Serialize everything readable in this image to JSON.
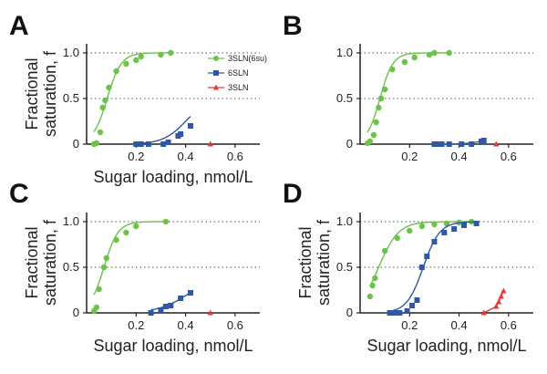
{
  "chart_data": [
    {
      "type": "scatter",
      "panel_label": "A",
      "xlabel": "Sugar loading, nmol/L",
      "ylabel": [
        "Fractional",
        "saturation, f"
      ],
      "xlim": [
        0,
        0.7
      ],
      "ylim": [
        0,
        1.1
      ],
      "x_ticks": [
        0.2,
        0.4,
        0.6
      ],
      "x_tick_labels": [
        "0.2",
        "0.4",
        "0.6"
      ],
      "y_ticks": [
        0,
        0.5,
        1.0
      ],
      "y_tick_labels": [
        "0",
        "0.5",
        "1.0"
      ],
      "gridlines_y": [
        0.5,
        1.0
      ],
      "legend": {
        "position": "upper-right",
        "entries": [
          "3SLN(6su)",
          "6SLN",
          "3SLN"
        ]
      },
      "series": [
        {
          "name": "3SLN(6su)",
          "color": "#6cc24a",
          "marker": "circle",
          "x": [
            0.03,
            0.04,
            0.055,
            0.065,
            0.075,
            0.09,
            0.12,
            0.16,
            0.2,
            0.22,
            0.3,
            0.34
          ],
          "y": [
            0.0,
            0.01,
            0.13,
            0.4,
            0.48,
            0.62,
            0.8,
            0.88,
            0.92,
            0.96,
            0.98,
            1.0
          ],
          "fit": {
            "x0": 0.083,
            "k": 35
          }
        },
        {
          "name": "6SLN",
          "color": "#2e58a6",
          "marker": "square",
          "x": [
            0.2,
            0.22,
            0.25,
            0.31,
            0.33,
            0.37,
            0.38,
            0.42
          ],
          "y": [
            0.0,
            0.0,
            0.0,
            0.0,
            0.02,
            0.09,
            0.11,
            0.2
          ],
          "fit": {
            "x0": 0.4,
            "k": 22,
            "ymax": 0.5
          }
        },
        {
          "name": "3SLN",
          "color": "#e23a3a",
          "marker": "triangle",
          "x": [
            0.5
          ],
          "y": [
            0.0
          ]
        }
      ]
    },
    {
      "type": "scatter",
      "panel_label": "B",
      "xlabel": "",
      "ylabel": [],
      "xlim": [
        0,
        0.7
      ],
      "ylim": [
        0,
        1.1
      ],
      "x_ticks": [
        0.2,
        0.4,
        0.6
      ],
      "x_tick_labels": [
        "0.2",
        "0.4",
        "0.6"
      ],
      "y_ticks": [
        0,
        0.5,
        1.0
      ],
      "y_tick_labels": [
        "0",
        "0.5",
        "1.0"
      ],
      "gridlines_y": [
        0.5,
        1.0
      ],
      "series": [
        {
          "name": "3SLN(6su)",
          "color": "#6cc24a",
          "marker": "circle",
          "x": [
            0.03,
            0.04,
            0.055,
            0.065,
            0.075,
            0.085,
            0.1,
            0.13,
            0.18,
            0.22,
            0.28,
            0.3,
            0.36
          ],
          "y": [
            0.01,
            0.03,
            0.1,
            0.24,
            0.4,
            0.5,
            0.6,
            0.82,
            0.9,
            0.95,
            0.98,
            1.0,
            1.0
          ],
          "fit": {
            "x0": 0.08,
            "k": 38
          }
        },
        {
          "name": "6SLN",
          "color": "#2e58a6",
          "marker": "square",
          "x": [
            0.3,
            0.31,
            0.33,
            0.36,
            0.41,
            0.45,
            0.49,
            0.5
          ],
          "y": [
            0.0,
            0.0,
            0.0,
            0.0,
            0.0,
            0.0,
            0.03,
            0.04
          ],
          "fit": {
            "x0": 0.6,
            "k": 25,
            "ymax": 0.6
          }
        },
        {
          "name": "3SLN",
          "color": "#e23a3a",
          "marker": "triangle",
          "x": [
            0.55
          ],
          "y": [
            0.0
          ]
        }
      ]
    },
    {
      "type": "scatter",
      "panel_label": "C",
      "xlabel": "Sugar loading, nmol/L",
      "ylabel": [
        "Fractional",
        "saturation, f"
      ],
      "xlim": [
        0,
        0.7
      ],
      "ylim": [
        0,
        1.1
      ],
      "x_ticks": [
        0.2,
        0.4,
        0.6
      ],
      "x_tick_labels": [
        "0.2",
        "0.4",
        "0.6"
      ],
      "y_ticks": [
        0,
        0.5,
        1.0
      ],
      "y_tick_labels": [
        "0",
        "0.5",
        "1.0"
      ],
      "gridlines_y": [
        0.5,
        1.0
      ],
      "series": [
        {
          "name": "3SLN(6su)",
          "color": "#6cc24a",
          "marker": "circle",
          "x": [
            0.03,
            0.04,
            0.05,
            0.07,
            0.08,
            0.12,
            0.16,
            0.2,
            0.32
          ],
          "y": [
            0.02,
            0.06,
            0.26,
            0.5,
            0.6,
            0.8,
            0.88,
            0.95,
            1.0
          ],
          "fit": {
            "x0": 0.07,
            "k": 35
          }
        },
        {
          "name": "6SLN",
          "color": "#2e58a6",
          "marker": "square",
          "x": [
            0.26,
            0.3,
            0.32,
            0.34,
            0.38,
            0.42
          ],
          "y": [
            0.0,
            0.03,
            0.07,
            0.08,
            0.16,
            0.22
          ],
          "fit": {
            "x0": 0.42,
            "k": 16,
            "ymax": 0.45
          }
        },
        {
          "name": "3SLN",
          "color": "#e23a3a",
          "marker": "triangle",
          "x": [
            0.5
          ],
          "y": [
            0.0
          ]
        }
      ]
    },
    {
      "type": "scatter",
      "panel_label": "D",
      "xlabel": "Sugar loading, nmol/L",
      "ylabel": [
        "Fractional",
        "saturation, f"
      ],
      "xlim": [
        0,
        0.7
      ],
      "ylim": [
        0,
        1.1
      ],
      "x_ticks": [
        0.2,
        0.4,
        0.6
      ],
      "x_tick_labels": [
        "0.2",
        "0.4",
        "0.6"
      ],
      "y_ticks": [
        0,
        0.5,
        1.0
      ],
      "y_tick_labels": [
        "0",
        "0.5",
        "1.0"
      ],
      "gridlines_y": [
        0.5,
        1.0
      ],
      "series": [
        {
          "name": "3SLN(6su)",
          "color": "#6cc24a",
          "marker": "circle",
          "x": [
            0.04,
            0.05,
            0.06,
            0.1,
            0.15,
            0.2,
            0.25,
            0.3,
            0.35,
            0.4,
            0.45
          ],
          "y": [
            0.18,
            0.3,
            0.38,
            0.68,
            0.82,
            0.9,
            0.95,
            0.97,
            0.98,
            0.99,
            1.0
          ],
          "fit": {
            "x0": 0.075,
            "k": 25
          }
        },
        {
          "name": "6SLN",
          "color": "#2e58a6",
          "marker": "square",
          "x": [
            0.12,
            0.14,
            0.16,
            0.19,
            0.21,
            0.23,
            0.25,
            0.27,
            0.3,
            0.34,
            0.38,
            0.42,
            0.47
          ],
          "y": [
            0.0,
            0.0,
            0.0,
            0.02,
            0.08,
            0.14,
            0.5,
            0.62,
            0.78,
            0.88,
            0.92,
            0.96,
            0.98
          ],
          "fit": {
            "x0": 0.255,
            "k": 30
          }
        },
        {
          "name": "3SLN",
          "color": "#e23a3a",
          "marker": "triangle",
          "x": [
            0.5,
            0.55,
            0.56,
            0.57,
            0.58
          ],
          "y": [
            0.0,
            0.07,
            0.12,
            0.18,
            0.24
          ]
        }
      ]
    }
  ]
}
